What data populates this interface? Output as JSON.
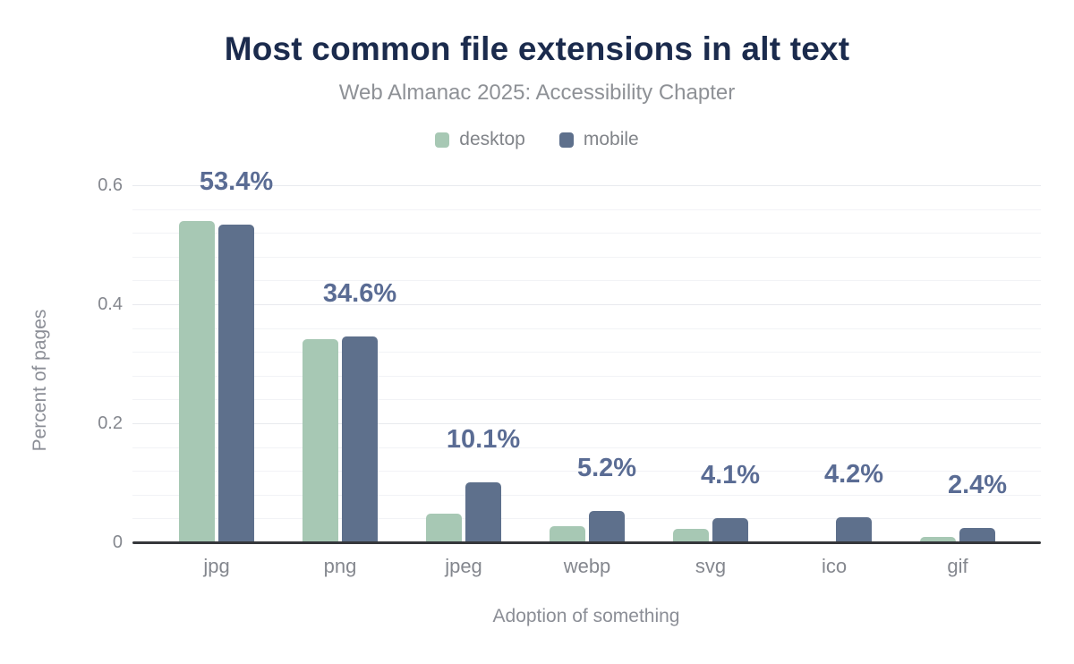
{
  "chart_data": {
    "type": "bar",
    "title": "Most common file extensions in alt text",
    "subtitle": "Web Almanac 2025: Accessibility Chapter",
    "xlabel": "Adoption of something",
    "ylabel": "Percent of pages",
    "categories": [
      "jpg",
      "png",
      "jpeg",
      "webp",
      "svg",
      "ico",
      "gif"
    ],
    "series": [
      {
        "name": "desktop",
        "color": "#a7c8b4",
        "values": [
          0.54,
          0.342,
          0.048,
          0.027,
          0.022,
          0.0,
          0.009
        ]
      },
      {
        "name": "mobile",
        "color": "#5e708c",
        "values": [
          0.534,
          0.346,
          0.101,
          0.052,
          0.041,
          0.042,
          0.024
        ]
      }
    ],
    "data_labels": [
      "53.4%",
      "34.6%",
      "10.1%",
      "5.2%",
      "4.1%",
      "4.2%",
      "2.4%"
    ],
    "data_labels_follow_series": "mobile",
    "yticks": [
      0,
      0.2,
      0.4,
      0.6
    ],
    "ytick_labels": [
      "0",
      "0.2",
      "0.4",
      "0.6"
    ],
    "ylim": [
      0,
      0.62
    ],
    "grid": "horizontal",
    "grid_step": 0.04,
    "legend_position": "top-center",
    "colors": {
      "title": "#1b2b4d",
      "subtitle": "#8e9196",
      "data_label": "#5a6c94",
      "axis_line": "#35373b",
      "grid_minor": "#f2f3f6",
      "grid_major": "#e8eaee",
      "tick_text": "#84878e"
    }
  }
}
